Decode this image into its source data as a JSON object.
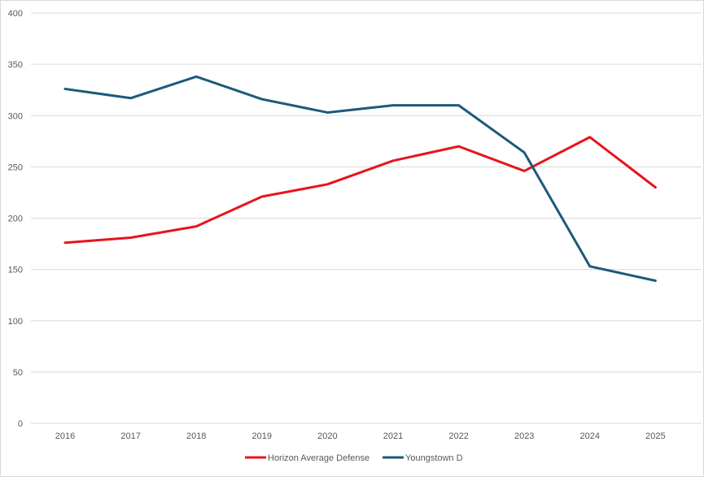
{
  "chart_data": {
    "type": "line",
    "title": "",
    "xlabel": "",
    "ylabel": "",
    "categories": [
      "2016",
      "2017",
      "2018",
      "2019",
      "2020",
      "2021",
      "2022",
      "2023",
      "2024",
      "2025"
    ],
    "ylim": [
      0,
      400
    ],
    "yticks": [
      0,
      50,
      100,
      150,
      200,
      250,
      300,
      350,
      400
    ],
    "grid": true,
    "legend_position": "bottom",
    "series": [
      {
        "name": "Horizon Average Defense",
        "color": "#e8141c",
        "values": [
          176,
          181,
          192,
          221,
          233,
          256,
          270,
          246,
          279,
          230
        ]
      },
      {
        "name": "Youngstown D",
        "color": "#1c5a7a",
        "values": [
          326,
          317,
          338,
          316,
          303,
          310,
          310,
          264,
          153,
          139
        ]
      }
    ]
  }
}
